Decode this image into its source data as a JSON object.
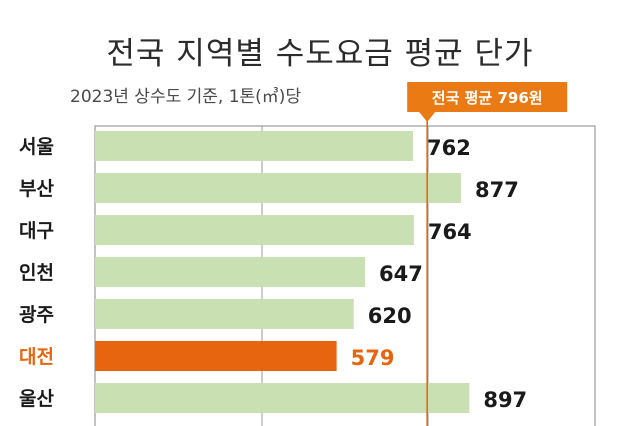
{
  "title": "전국 지역별 수도요금 평균 단가",
  "subtitle": "2023년 상수도 기준, 1톤(㎥)당",
  "average": {
    "label": "전국 평균 796원",
    "value": 796
  },
  "colors": {
    "bar": "#c9e0b3",
    "highlight": "#e8650f",
    "highlight_text": "#e8650f",
    "avg_line": "#e8650f",
    "badge_bg": "#ea7a14",
    "label_text": "#1a1a1a"
  },
  "chart_data": {
    "type": "bar",
    "orientation": "horizontal",
    "title": "전국 지역별 수도요금 평균 단가",
    "subtitle": "2023년 상수도 기준, 1톤(㎥)당",
    "categories": [
      "서울",
      "부산",
      "대구",
      "인천",
      "광주",
      "대전",
      "울산"
    ],
    "values": [
      762,
      877,
      764,
      647,
      620,
      579,
      897
    ],
    "value_labels": [
      "762",
      "877",
      "764",
      "647",
      "620",
      "579",
      "897"
    ],
    "highlight": "대전",
    "reference_line": {
      "value": 796,
      "label": "전국 평균 796원"
    },
    "xlim": [
      0,
      1150
    ],
    "grid": true,
    "xlabel": "",
    "ylabel": ""
  }
}
